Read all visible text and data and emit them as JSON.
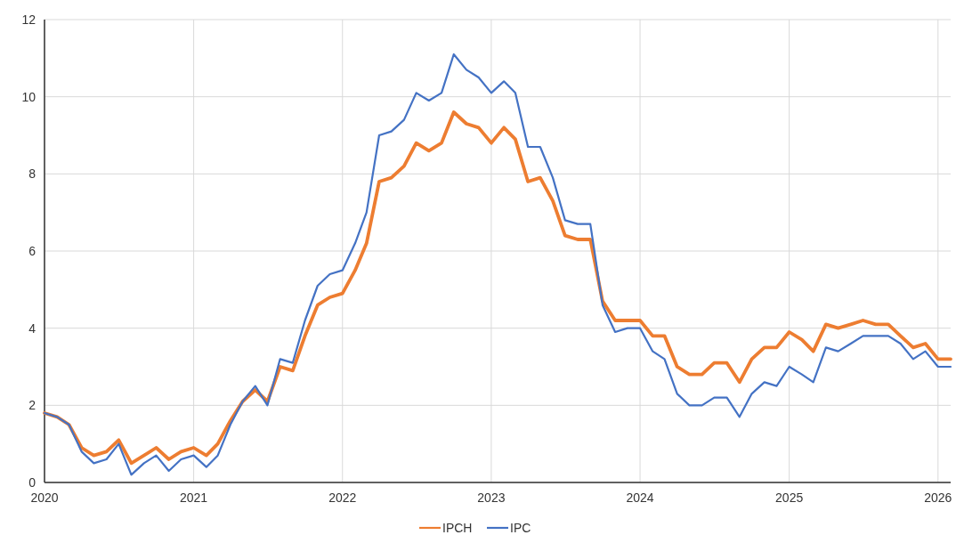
{
  "chart_data": {
    "type": "line",
    "x": [
      "2020-01",
      "2020-02",
      "2020-03",
      "2020-04",
      "2020-05",
      "2020-06",
      "2020-07",
      "2020-08",
      "2020-09",
      "2020-10",
      "2020-11",
      "2020-12",
      "2021-01",
      "2021-02",
      "2021-03",
      "2021-04",
      "2021-05",
      "2021-06",
      "2021-07",
      "2021-08",
      "2021-09",
      "2021-10",
      "2021-11",
      "2021-12",
      "2022-01",
      "2022-02",
      "2022-03",
      "2022-04",
      "2022-05",
      "2022-06",
      "2022-07",
      "2022-08",
      "2022-09",
      "2022-10",
      "2022-11",
      "2022-12",
      "2023-01",
      "2023-02",
      "2023-03",
      "2023-04",
      "2023-05",
      "2023-06",
      "2023-07",
      "2023-08",
      "2023-09",
      "2023-10",
      "2023-11",
      "2023-12",
      "2024-01",
      "2024-02",
      "2024-03",
      "2024-04",
      "2024-05",
      "2024-06",
      "2024-07",
      "2024-08",
      "2024-09",
      "2024-10",
      "2024-11",
      "2024-12",
      "2025-01",
      "2025-02",
      "2025-03",
      "2025-04",
      "2025-05",
      "2025-06",
      "2025-07",
      "2025-08",
      "2025-09",
      "2025-10",
      "2025-11",
      "2025-12",
      "2026-01",
      "2026-02"
    ],
    "series": [
      {
        "name": "IPCH",
        "color": "#ed7d31",
        "values": [
          1.8,
          1.7,
          1.5,
          0.9,
          0.7,
          0.8,
          1.1,
          0.5,
          0.7,
          0.9,
          0.6,
          0.8,
          0.9,
          0.7,
          1.0,
          1.6,
          2.1,
          2.4,
          2.1,
          3.0,
          2.9,
          3.8,
          4.6,
          4.8,
          4.9,
          5.5,
          6.2,
          7.8,
          7.9,
          8.2,
          8.8,
          8.6,
          8.8,
          9.6,
          9.3,
          9.2,
          8.8,
          9.2,
          8.9,
          7.8,
          7.9,
          7.3,
          6.4,
          6.3,
          6.3,
          4.7,
          4.2,
          4.2,
          4.2,
          3.8,
          3.8,
          3.0,
          2.8,
          2.8,
          3.1,
          3.1,
          2.6,
          3.2,
          3.5,
          3.5,
          3.9,
          3.7,
          3.4,
          4.1,
          4.0,
          4.1,
          4.2,
          4.1,
          4.1,
          3.8,
          3.5,
          3.6,
          3.2,
          3.2
        ]
      },
      {
        "name": "IPC",
        "color": "#4472c4",
        "values": [
          1.8,
          1.7,
          1.5,
          0.8,
          0.5,
          0.6,
          1.0,
          0.2,
          0.5,
          0.7,
          0.3,
          0.6,
          0.7,
          0.4,
          0.7,
          1.5,
          2.1,
          2.5,
          2.0,
          3.2,
          3.1,
          4.2,
          5.1,
          5.4,
          5.5,
          6.2,
          7.0,
          9.0,
          9.1,
          9.4,
          10.1,
          9.9,
          10.1,
          11.1,
          10.7,
          10.5,
          10.1,
          10.4,
          10.1,
          8.7,
          8.7,
          7.9,
          6.8,
          6.7,
          6.7,
          4.6,
          3.9,
          4.0,
          4.0,
          3.4,
          3.2,
          2.3,
          2.0,
          2.0,
          2.2,
          2.2,
          1.7,
          2.3,
          2.6,
          2.5,
          3.0,
          2.8,
          2.6,
          3.5,
          3.4,
          3.6,
          3.8,
          3.8,
          3.8,
          3.6,
          3.2,
          3.4,
          3.0,
          3.0
        ]
      }
    ],
    "xlim": [
      "2020-01",
      "2026-02"
    ],
    "xticks": [
      {
        "value": "2020",
        "label": "2020"
      },
      {
        "value": "2021",
        "label": "2021"
      },
      {
        "value": "2022",
        "label": "2022"
      },
      {
        "value": "2023",
        "label": "2023"
      },
      {
        "value": "2024",
        "label": "2024"
      },
      {
        "value": "2025",
        "label": "2025"
      },
      {
        "value": "2026",
        "label": "2026"
      }
    ],
    "ylim": [
      0,
      12
    ],
    "yticks": [
      0,
      2,
      4,
      6,
      8,
      10,
      12
    ],
    "grid": true,
    "legend": "bottom",
    "line_style": "solid",
    "marker": "none"
  }
}
